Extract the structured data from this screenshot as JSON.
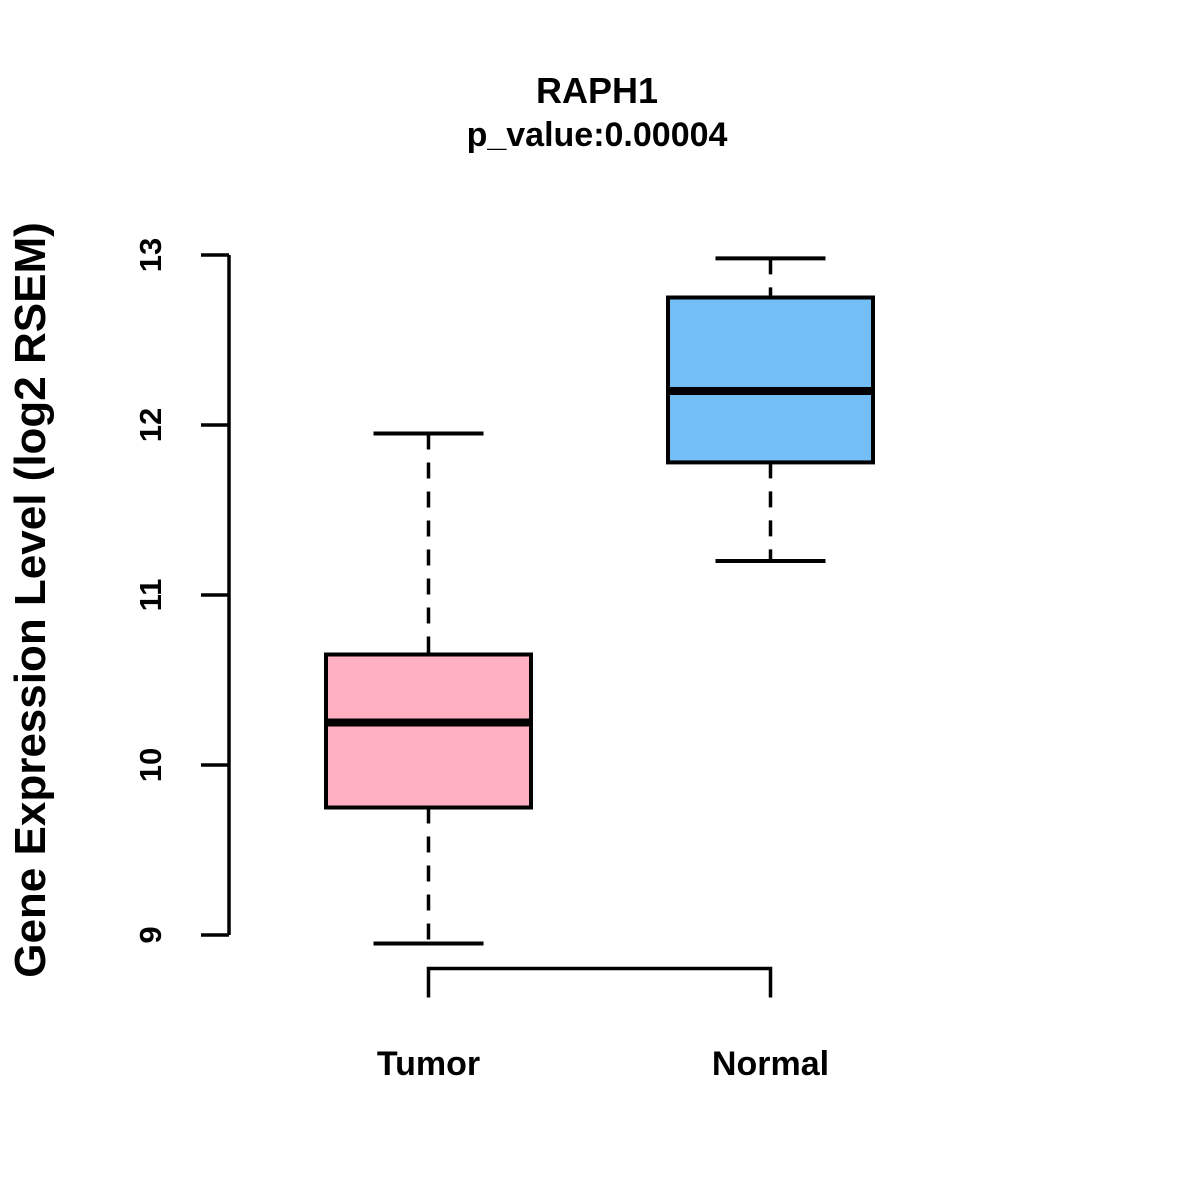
{
  "chart_data": {
    "type": "box",
    "title": "RAPH1",
    "subtitle": "p_value:0.00004",
    "ylabel": "Gene Expression Level (log2 RSEM)",
    "xlabel": "",
    "categories": [
      "Tumor",
      "Normal"
    ],
    "series": [
      {
        "name": "Tumor",
        "color": "#FFB1C1",
        "lower_whisker": 8.95,
        "q1": 9.75,
        "median": 10.25,
        "q3": 10.65,
        "upper_whisker": 11.95
      },
      {
        "name": "Normal",
        "color": "#74BEF6",
        "lower_whisker": 11.2,
        "q1": 11.78,
        "median": 12.2,
        "q3": 12.75,
        "upper_whisker": 12.98
      }
    ],
    "yticks": [
      9,
      10,
      11,
      12,
      13
    ],
    "ylim": [
      8.6,
      13.05
    ],
    "grid": false,
    "legend": "none",
    "axis_color": "#000000",
    "background": "#FFFFFF",
    "text_color": "#000000"
  }
}
